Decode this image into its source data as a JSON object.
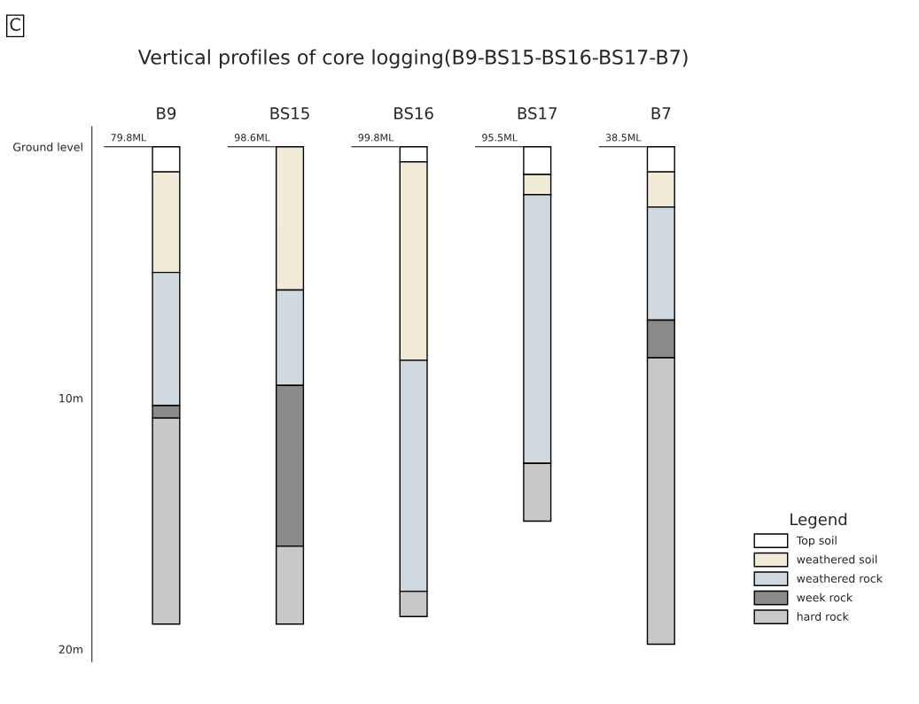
{
  "chart_data": {
    "type": "bar",
    "stacked": true,
    "title": "Vertical profiles of core logging(B9-BS15-BS16-BS17-B7)",
    "categories": [
      "B9",
      "BS15",
      "BS16",
      "BS17",
      "B7"
    ],
    "series": [
      {
        "name": "Top soil",
        "color": "#ffffff",
        "values": [
          1.0,
          null,
          0.6,
          1.1,
          1.0
        ]
      },
      {
        "name": "weathered soil",
        "color": "#f0ead6",
        "values": [
          4.0,
          5.7,
          7.9,
          0.8,
          1.4
        ]
      },
      {
        "name": "weathered rock",
        "color": "#d0d8e0",
        "values": [
          5.3,
          3.8,
          9.2,
          10.7,
          4.5
        ]
      },
      {
        "name": "week rock",
        "color": "#8a8a8a",
        "values": [
          0.5,
          6.4,
          null,
          null,
          1.5
        ]
      },
      {
        "name": "hard rock",
        "color": "#c8c8c8",
        "values": [
          8.2,
          3.1,
          1.0,
          2.3,
          11.4
        ]
      }
    ],
    "ylim": [
      20.5,
      -0.8
    ],
    "yticks": [
      {
        "value": 0,
        "label": "Ground level"
      },
      {
        "value": 10,
        "label": "10m"
      },
      {
        "value": 20,
        "label": "20m"
      }
    ],
    "legend": "bottom right",
    "legend_title": "Legend",
    "grid": false,
    "annotations": [
      "C",
      {
        "text": "79.8ML",
        "x": "B9",
        "y": 0
      },
      {
        "text": "98.6ML",
        "x": "BS15",
        "y": 0
      },
      {
        "text": "99.8ML",
        "x": "BS16",
        "y": 0
      },
      {
        "text": "95.5ML",
        "x": "BS17",
        "y": 0
      },
      {
        "text": "38.5ML",
        "x": "B7",
        "y": 0
      }
    ]
  }
}
